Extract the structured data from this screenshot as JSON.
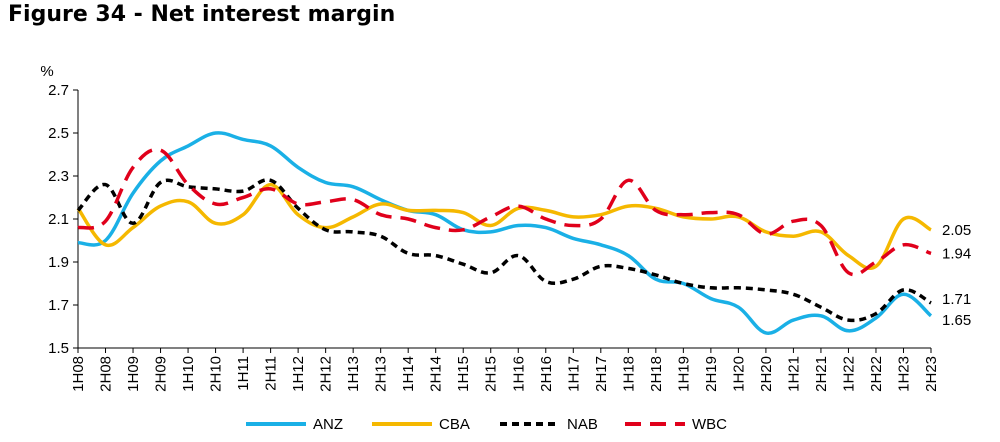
{
  "title": "Figure 34 - Net interest margin",
  "chart_data": {
    "type": "line",
    "title": "Figure 34 - Net interest margin",
    "ylabel": "%",
    "xlabel": "",
    "ylim": [
      1.5,
      2.7
    ],
    "yticks": [
      "1.5",
      "1.7",
      "1.9",
      "2.1",
      "2.3",
      "2.5",
      "2.7"
    ],
    "grid": false,
    "legend": "bottom",
    "categories": [
      "1H08",
      "2H08",
      "1H09",
      "2H09",
      "1H10",
      "2H10",
      "1H11",
      "2H11",
      "1H12",
      "2H12",
      "1H13",
      "2H13",
      "1H14",
      "2H14",
      "1H15",
      "2H15",
      "1H16",
      "2H16",
      "1H17",
      "2H17",
      "1H18",
      "2H18",
      "1H19",
      "2H19",
      "1H20",
      "2H20",
      "1H21",
      "2H21",
      "1H22",
      "2H22",
      "1H23",
      "2H23"
    ],
    "series": [
      {
        "name": "ANZ",
        "color": "#1ab0e6",
        "dash": "solid",
        "values": [
          1.99,
          2.0,
          2.22,
          2.37,
          2.44,
          2.5,
          2.47,
          2.44,
          2.34,
          2.27,
          2.25,
          2.19,
          2.14,
          2.12,
          2.05,
          2.04,
          2.07,
          2.06,
          2.01,
          1.98,
          1.93,
          1.82,
          1.8,
          1.73,
          1.69,
          1.57,
          1.63,
          1.65,
          1.58,
          1.64,
          1.75,
          1.65
        ]
      },
      {
        "name": "CBA",
        "color": "#f5b800",
        "dash": "solid",
        "values": [
          2.15,
          1.98,
          2.06,
          2.16,
          2.18,
          2.08,
          2.12,
          2.26,
          2.12,
          2.06,
          2.11,
          2.17,
          2.14,
          2.14,
          2.13,
          2.07,
          2.15,
          2.14,
          2.11,
          2.12,
          2.16,
          2.15,
          2.11,
          2.1,
          2.11,
          2.04,
          2.02,
          2.04,
          1.93,
          1.88,
          2.1,
          2.05
        ]
      },
      {
        "name": "NAB",
        "color": "#000000",
        "dash": "short",
        "values": [
          2.14,
          2.26,
          2.08,
          2.27,
          2.25,
          2.24,
          2.23,
          2.28,
          2.15,
          2.05,
          2.04,
          2.02,
          1.94,
          1.93,
          1.89,
          1.85,
          1.93,
          1.81,
          1.82,
          1.88,
          1.87,
          1.84,
          1.8,
          1.78,
          1.78,
          1.77,
          1.75,
          1.69,
          1.63,
          1.66,
          1.77,
          1.71
        ]
      },
      {
        "name": "WBC",
        "color": "#e0001b",
        "dash": "long",
        "values": [
          2.06,
          2.09,
          2.34,
          2.42,
          2.26,
          2.17,
          2.2,
          2.24,
          2.17,
          2.18,
          2.19,
          2.12,
          2.1,
          2.06,
          2.05,
          2.11,
          2.16,
          2.1,
          2.07,
          2.1,
          2.28,
          2.14,
          2.12,
          2.13,
          2.12,
          2.03,
          2.09,
          2.07,
          1.85,
          1.9,
          1.98,
          1.94
        ]
      }
    ],
    "end_labels": [
      {
        "series": "CBA",
        "text": "2.05"
      },
      {
        "series": "WBC",
        "text": "1.94"
      },
      {
        "series": "NAB",
        "text": "1.71"
      },
      {
        "series": "ANZ",
        "text": "1.65"
      }
    ]
  }
}
